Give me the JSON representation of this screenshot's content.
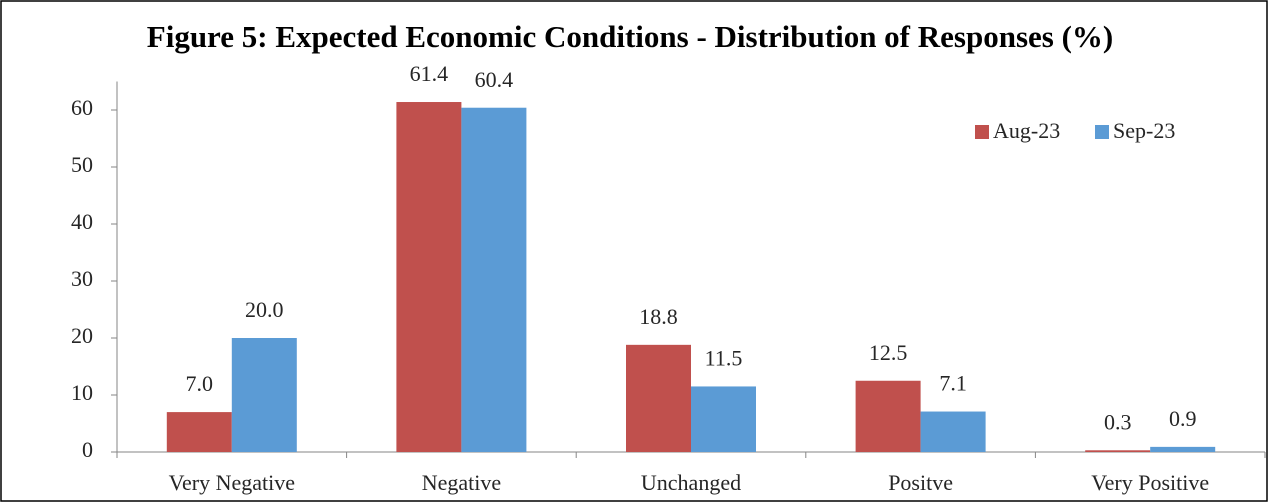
{
  "chart_data": {
    "type": "bar",
    "title": "Figure 5: Expected Economic Conditions - Distribution of  Responses (%)",
    "categories": [
      "Very Negative",
      "Negative",
      "Unchanged",
      "Positve",
      "Very Positive"
    ],
    "series": [
      {
        "name": "Aug-23",
        "color": "#c0504d",
        "values": [
          7,
          61.4,
          18.8,
          12.5,
          0.3
        ],
        "value_labels": [
          "7.0",
          "61.4",
          "18.8",
          "12.5",
          "0.3"
        ]
      },
      {
        "name": "Sep-23",
        "color": "#5b9bd5",
        "values": [
          20,
          60.4,
          11.5,
          7.1,
          0.9
        ],
        "value_labels": [
          "20.0",
          "60.4",
          "11.5",
          "7.1",
          "0.9"
        ]
      }
    ],
    "ylim": [
      0,
      65
    ],
    "yticks": [
      0,
      10,
      20,
      30,
      40,
      50,
      60
    ],
    "grid": false,
    "legend": "top-right"
  }
}
